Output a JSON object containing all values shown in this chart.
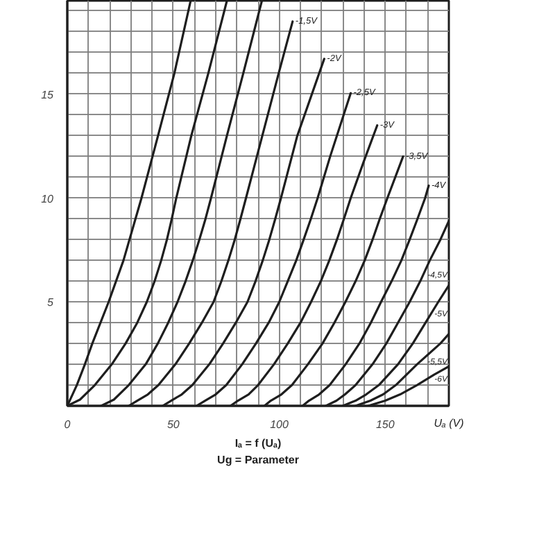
{
  "chart_data": {
    "type": "line",
    "xlabel": "Uₐ (V)",
    "annotations": [
      "Iₐ = f (Uₐ)",
      "Ug = Parameter"
    ],
    "xlim": [
      0,
      180
    ],
    "ylim": [
      0,
      19.5
    ],
    "xticks": [
      0,
      {
        "value": 10,
        "label": null
      },
      {
        "value": 20,
        "label": null
      },
      {
        "value": 30,
        "label": null
      },
      {
        "value": 40,
        "label": null
      },
      50,
      {
        "value": 60,
        "label": null
      },
      {
        "value": 70,
        "label": null
      },
      {
        "value": 80,
        "label": null
      },
      {
        "value": 90,
        "label": null
      },
      100,
      {
        "value": 110,
        "label": null
      },
      {
        "value": 120,
        "label": null
      },
      {
        "value": 130,
        "label": null
      },
      {
        "value": 140,
        "label": null
      },
      150,
      {
        "value": 160,
        "label": null
      },
      {
        "value": 170,
        "label": null
      }
    ],
    "yticks": [
      {
        "value": 0,
        "label": null
      },
      {
        "value": 1,
        "label": null
      },
      {
        "value": 2,
        "label": null
      },
      {
        "value": 3,
        "label": null
      },
      {
        "value": 4,
        "label": null
      },
      5,
      {
        "value": 6,
        "label": null
      },
      {
        "value": 7,
        "label": null
      },
      {
        "value": 8,
        "label": null
      },
      {
        "value": 9,
        "label": null
      },
      10,
      {
        "value": 11,
        "label": null
      },
      {
        "value": 12,
        "label": null
      },
      {
        "value": 13,
        "label": null
      },
      {
        "value": 14,
        "label": null
      },
      15,
      {
        "value": 16,
        "label": null
      },
      {
        "value": 17,
        "label": null
      },
      {
        "value": 18,
        "label": null
      },
      {
        "value": 19,
        "label": null
      }
    ],
    "grid": true,
    "series": [
      {
        "color": "#1e1e1e",
        "x": [
          0,
          4.5,
          8.3,
          11.8,
          19.5,
          26.5,
          35,
          42.8,
          50.5,
          58.2
        ],
        "values": [
          0,
          1,
          2,
          3,
          5,
          7,
          10,
          13,
          16,
          19.5
        ]
      },
      {
        "color": "#1e1e1e",
        "x": [
          0,
          6,
          13,
          21,
          27.5,
          33,
          37.5,
          41.2,
          44.3,
          47,
          49.3,
          51.4,
          58.5,
          66.5,
          75.3
        ],
        "values": [
          0,
          0.3,
          1,
          2,
          3,
          4,
          5,
          6,
          7,
          8,
          9,
          10,
          13,
          16,
          19.5
        ]
      },
      {
        "color": "#1e1e1e",
        "x": [
          16,
          22,
          29,
          37,
          42.7,
          47.6,
          52,
          55.8,
          59.2,
          62.3,
          65.2,
          67.8,
          75.3,
          83,
          91.8
        ],
        "values": [
          0,
          0.3,
          1,
          2,
          3,
          4,
          5,
          6,
          7,
          8,
          9,
          10,
          13,
          16,
          19.5
        ]
      },
      {
        "name": "-1,5V",
        "color": "#1e1e1e",
        "x": [
          29,
          33,
          38,
          43,
          51,
          57.5,
          63.5,
          69,
          72.7,
          76,
          79,
          81.7,
          84.3,
          92,
          99.7,
          106.3
        ],
        "values": [
          0,
          0.25,
          0.55,
          1,
          2,
          3,
          4,
          5,
          6,
          7,
          8,
          9,
          10,
          13,
          16,
          18.5
        ]
      },
      {
        "name": "-2V",
        "color": "#1e1e1e",
        "x": [
          45,
          49,
          54,
          59,
          67,
          73.5,
          79.5,
          85,
          88.8,
          92.2,
          95.3,
          98.1,
          100.8,
          108.5,
          121.2
        ],
        "values": [
          0,
          0.25,
          0.55,
          1,
          2,
          3,
          4,
          5,
          6,
          7,
          8,
          9,
          10,
          13,
          16.7
        ]
      },
      {
        "name": "-2,5V",
        "color": "#1e1e1e",
        "x": [
          61,
          65,
          70,
          75,
          82.5,
          89,
          95,
          100,
          104,
          108,
          111.5,
          114.9,
          118.1,
          124,
          133.7
        ],
        "values": [
          0,
          0.25,
          0.55,
          1,
          2,
          3,
          4,
          5,
          6,
          7,
          8,
          9,
          10,
          12,
          15.05
        ]
      },
      {
        "name": "-3V",
        "color": "#1e1e1e",
        "x": [
          77,
          80.5,
          85.5,
          90,
          97.5,
          104,
          110,
          115,
          119.6,
          123.6,
          127.2,
          130.5,
          133.7,
          140,
          146.2
        ],
        "values": [
          0,
          0.25,
          0.55,
          1,
          2,
          3,
          4,
          5,
          6,
          7,
          8,
          9,
          10,
          11.8,
          13.5
        ]
      },
      {
        "name": "-3,5V",
        "color": "#1e1e1e",
        "x": [
          93,
          96,
          101,
          106,
          113.5,
          120.4,
          126,
          131.2,
          136,
          140.3,
          144,
          147.4,
          151,
          158.4
        ],
        "values": [
          0,
          0.25,
          0.55,
          1,
          2,
          3,
          4,
          5,
          6,
          7,
          8,
          9,
          10,
          12
        ]
      },
      {
        "name": "-4V",
        "color": "#1e1e1e",
        "x": [
          111,
          114,
          118.8,
          123.8,
          131.3,
          137.8,
          143.2,
          148,
          153,
          157.6,
          161.5,
          165.2,
          168.8,
          170.5
        ],
        "values": [
          0,
          0.25,
          0.55,
          1,
          2,
          3,
          4,
          5,
          6,
          7,
          8,
          9,
          10,
          10.6
        ]
      },
      {
        "name": "-4,5V",
        "color": "#1e1e1e",
        "x": [
          122,
          127,
          131,
          136,
          144,
          150.5,
          156,
          161.5,
          166.5,
          171,
          176,
          180
        ],
        "values": [
          0,
          0.25,
          0.55,
          1,
          2,
          3,
          4,
          5,
          6,
          7,
          8,
          8.9
        ]
      },
      {
        "name": "-5V",
        "color": "#1e1e1e",
        "x": [
          130,
          136,
          141,
          147,
          156,
          163,
          169,
          175,
          180
        ],
        "values": [
          0,
          0.25,
          0.55,
          1,
          2,
          3,
          4,
          5,
          5.8
        ]
      },
      {
        "name": "-5,5V",
        "color": "#1e1e1e",
        "x": [
          136,
          143,
          149,
          155,
          165,
          176,
          180
        ],
        "values": [
          0,
          0.25,
          0.55,
          1,
          2,
          3,
          3.46
        ]
      },
      {
        "name": "-6V",
        "color": "#1e1e1e",
        "x": [
          142,
          150,
          157,
          165,
          173,
          180
        ],
        "values": [
          0,
          0.25,
          0.55,
          1,
          1.5,
          1.9
        ]
      }
    ]
  }
}
